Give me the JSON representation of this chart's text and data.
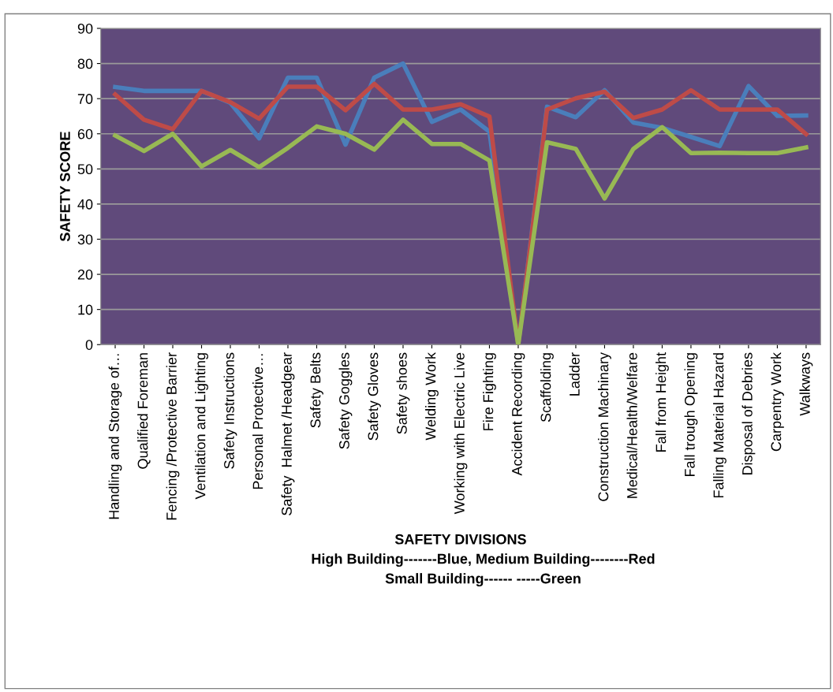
{
  "chart_data": {
    "type": "line",
    "xlabel": "SAFETY DIVISIONS",
    "ylabel": "SAFETY SCORE",
    "annotations": [
      "High Building-------Blue, Medium Building--------Red",
      "Small Building------ -----Green"
    ],
    "categories": [
      "Handling and Storage of…",
      "Qualified Foreman",
      "Fencing /Protective Barrier",
      "Ventilation and Lighting",
      "Safety Instructions",
      "Personal Protective…",
      "Safety  Halmet /Headgear",
      "Safety Belts",
      "Safety Goggles",
      "Safety Gloves",
      "Safety shoes",
      "Welding Work",
      "Working with Electric Live",
      "Fire Fighting",
      "Accident Recording",
      "Scaffolding",
      "Ladder",
      "Construction Machinary",
      "Medical/Health/Welfare",
      "Fall from Height",
      "Fall trough Opening",
      "Falling Material Hazard",
      "Disposal of Debries",
      "Carpentry Work",
      "Walkways"
    ],
    "series": [
      {
        "color": "#4a7ebb",
        "values": [
          73.3,
          72.2,
          72.2,
          72.2,
          68.8,
          58.7,
          76,
          76,
          56.9,
          76,
          80,
          63.4,
          66.9,
          60.6,
          0,
          67.7,
          64.7,
          72.4,
          63.2,
          61.7,
          59.1,
          56.5,
          73.6,
          65.1,
          65.2
        ]
      },
      {
        "color": "#be4b48",
        "values": [
          71.2,
          64,
          61.3,
          72.2,
          69,
          64.3,
          73.4,
          73.4,
          66.7,
          74.2,
          66.9,
          66.9,
          68.4,
          64.9,
          0,
          66.9,
          70.1,
          72,
          64.5,
          66.9,
          72.4,
          66.9,
          66.9,
          66.9,
          59.9
        ]
      },
      {
        "color": "#98b954",
        "values": [
          59.5,
          55.1,
          60,
          50.7,
          55.4,
          50.5,
          56,
          62.1,
          60,
          55.5,
          64,
          57.1,
          57.1,
          52.4,
          0,
          57.6,
          55.7,
          41.6,
          55.7,
          61.9,
          54.5,
          54.6,
          54.5,
          54.5,
          56.1
        ]
      }
    ],
    "ylim": [
      0,
      90
    ],
    "yticks": [
      0,
      10,
      20,
      30,
      40,
      50,
      60,
      70,
      80,
      90
    ],
    "grid": "y",
    "legend": false,
    "marker": "none",
    "line_style": "solid"
  }
}
